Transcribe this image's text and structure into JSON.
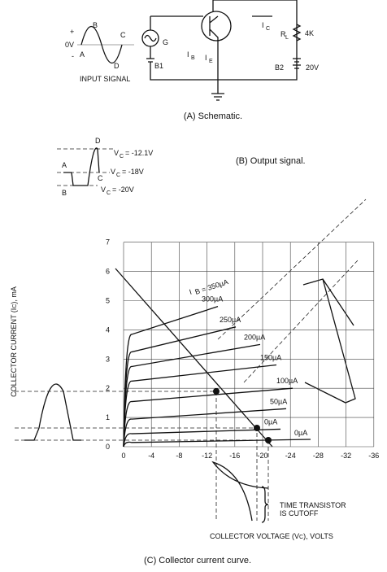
{
  "schematic": {
    "input": {
      "plus": "+",
      "zero": "0V",
      "minus": "-",
      "a": "A",
      "b": "B",
      "c": "C",
      "d": "D",
      "label": "INPUT SIGNAL"
    },
    "g": "G",
    "b1": "B1",
    "ib": "I",
    "ib_sub": "B",
    "ic": "I",
    "ic_sub": "C",
    "ie": "I",
    "ie_sub": "E",
    "rl": "R",
    "rl_sub": "L",
    "rl_value": "4K",
    "b2": "B2",
    "b2_value": "20V",
    "caption": "(A) Schematic."
  },
  "output": {
    "d": "D",
    "a": "A",
    "c": "C",
    "b": "B",
    "v1": "= -12.1V",
    "v2": "= -18V",
    "v3": "= -20V",
    "vc": "V",
    "vc_sub": "C",
    "caption": "(B) Output signal."
  },
  "curves": {
    "y_title": "COLLECTOR CURRENT (I",
    "y_title_sub": "C",
    "y_title_end": "), mA",
    "yticks": [
      "0",
      "1",
      "2",
      "3",
      "4",
      "5",
      "6",
      "7"
    ],
    "xticks": [
      "0",
      "-4",
      "-8",
      "-12",
      "-16",
      "-20",
      "-24",
      "-28",
      "-32",
      "-36"
    ],
    "ib_labels": [
      "I",
      "0µA",
      "50µA",
      "100µA",
      "150µA",
      "200µA",
      "250µA",
      "300µA"
    ],
    "ib_first": "B = 350µA",
    "brace_text": [
      "TIME TRANSISTOR",
      "IS CUTOFF"
    ],
    "x_title": "COLLECTOR VOLTAGE (V",
    "x_title_sub": "C",
    "x_title_end": "), VOLTS",
    "caption": "(C) Collector current curve."
  }
}
